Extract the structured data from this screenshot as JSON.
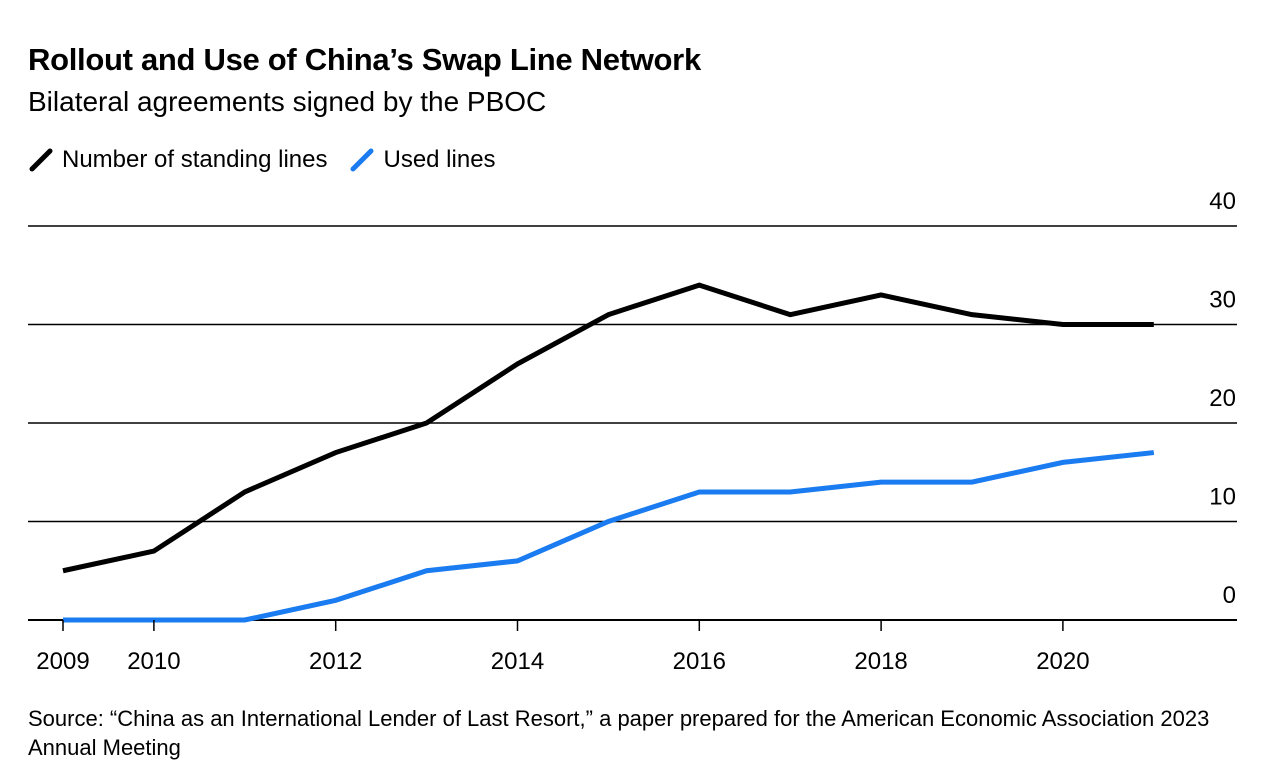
{
  "title": "Rollout and Use of China’s Swap Line Network",
  "subtitle": "Bilateral agreements signed by the PBOC",
  "source": "Source: “China as an International Lender of Last Resort,” a paper prepared for the American Economic Association 2023 Annual Meeting",
  "chart_data": {
    "type": "line",
    "title": "Rollout and Use of China’s Swap Line Network",
    "subtitle": "Bilateral agreements signed by the PBOC",
    "x": [
      2009,
      2010,
      2011,
      2012,
      2013,
      2014,
      2015,
      2016,
      2017,
      2018,
      2019,
      2020,
      2021
    ],
    "series": [
      {
        "name": "Number of standing lines",
        "color": "#000000",
        "values": [
          5,
          7,
          13,
          17,
          20,
          26,
          31,
          34,
          31,
          33,
          31,
          30,
          30
        ]
      },
      {
        "name": "Used lines",
        "color": "#1a7cf0",
        "values": [
          0,
          0,
          0,
          2,
          5,
          6,
          10,
          13,
          13,
          14,
          14,
          16,
          17
        ]
      }
    ],
    "x_tick_labels": [
      "2009",
      "2010",
      "2012",
      "2014",
      "2016",
      "2018",
      "2020"
    ],
    "y_tick_labels": [
      "0",
      "10",
      "20",
      "30",
      "40"
    ],
    "xlim": [
      2009,
      2022.2
    ],
    "ylim": [
      0,
      40
    ],
    "y_axis_side": "right",
    "grid": true,
    "legend_placement": "top-left"
  }
}
